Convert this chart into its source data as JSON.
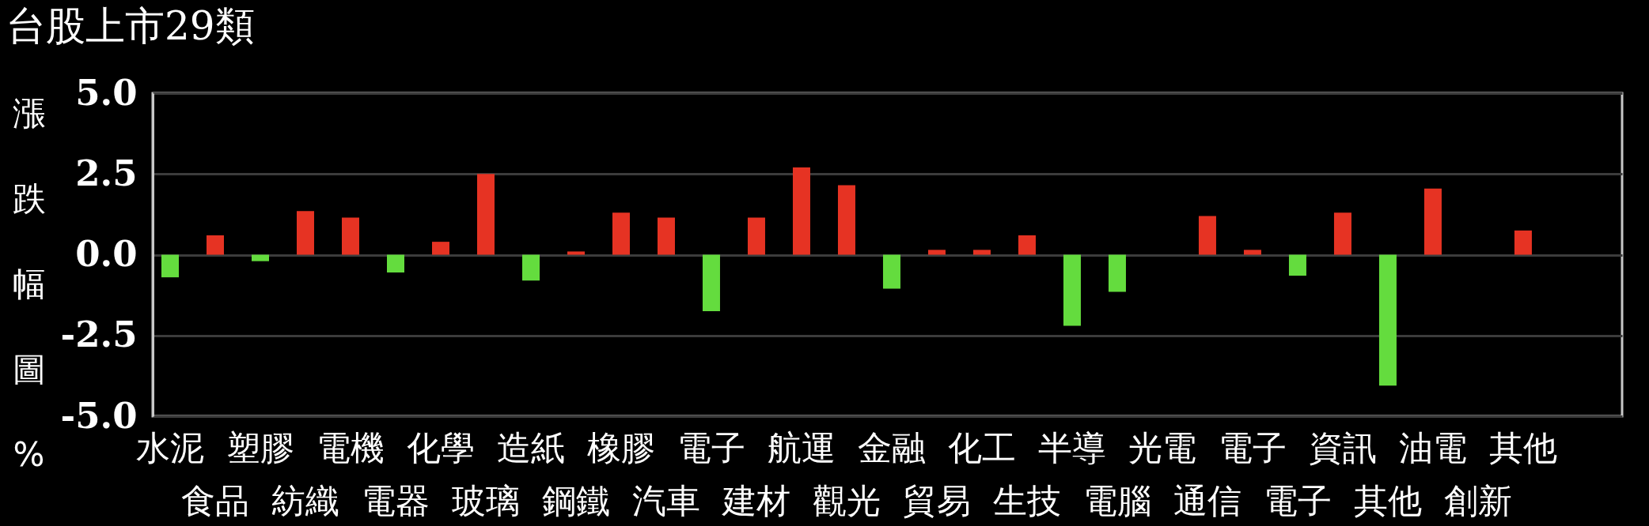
{
  "chart_data": {
    "type": "bar",
    "title": "台股上市29類",
    "ylabel": "漲跌幅圖%",
    "categories": [
      "水泥",
      "食品",
      "塑膠",
      "紡織",
      "電機",
      "電器",
      "化學",
      "玻璃",
      "造紙",
      "鋼鐵",
      "橡膠",
      "汽車",
      "電子",
      "建材",
      "航運",
      "觀光",
      "金融",
      "貿易",
      "化工",
      "生技",
      "半導",
      "電腦",
      "光電",
      "通信",
      "電子",
      "電子",
      "資訊",
      "其他",
      "油電",
      "創新",
      "其他"
    ],
    "values": [
      -0.7,
      0.6,
      -0.2,
      1.35,
      1.15,
      -0.55,
      0.4,
      2.5,
      -0.8,
      0.1,
      1.3,
      1.15,
      -1.75,
      1.15,
      2.7,
      2.15,
      -1.05,
      0.15,
      0.15,
      0.6,
      -2.2,
      -1.15,
      null,
      1.2,
      0.15,
      -0.65,
      1.3,
      -4.05,
      2.05,
      null,
      0.75
    ],
    "colors": [
      "#64dc3e",
      "#e63323",
      "#64dc3e",
      "#e63323",
      "#e63323",
      "#64dc3e",
      "#e63323",
      "#e63323",
      "#64dc3e",
      "#e63323",
      "#e63323",
      "#e63323",
      "#64dc3e",
      "#e63323",
      "#e63323",
      "#e63323",
      "#64dc3e",
      "#e63323",
      "#e63323",
      "#e63323",
      "#64dc3e",
      "#64dc3e",
      "#e63323",
      "#e63323",
      "#e63323",
      "#64dc3e",
      "#e63323",
      "#64dc3e",
      "#e63323",
      "#e63323",
      "#e63323"
    ],
    "ylim": [
      -5,
      5
    ],
    "yticks": [
      {
        "value": 5,
        "label": "5.0"
      },
      {
        "value": 2.5,
        "label": "2.5"
      },
      {
        "value": 0,
        "label": "0.0"
      },
      {
        "value": -2.5,
        "label": "-2.5"
      },
      {
        "value": -5,
        "label": "-5.0"
      }
    ],
    "grid": "y"
  }
}
